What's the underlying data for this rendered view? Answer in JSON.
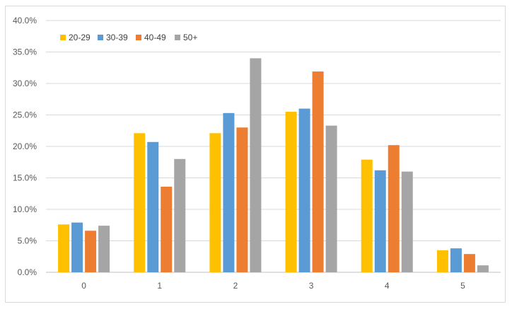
{
  "chart_data": {
    "type": "bar",
    "categories": [
      "0",
      "1",
      "2",
      "3",
      "4",
      "5"
    ],
    "series": [
      {
        "name": "20-29",
        "color": "#FFC000",
        "values": [
          7.6,
          22.1,
          22.1,
          25.5,
          17.9,
          3.5
        ]
      },
      {
        "name": "30-39",
        "color": "#5B9BD5",
        "values": [
          7.9,
          20.7,
          25.3,
          26.0,
          16.2,
          3.8
        ]
      },
      {
        "name": "40-49",
        "color": "#ED7D31",
        "values": [
          6.6,
          13.6,
          23.0,
          31.9,
          20.2,
          2.9
        ]
      },
      {
        "name": "50+",
        "color": "#A5A5A5",
        "values": [
          7.4,
          18.0,
          34.0,
          23.3,
          16.0,
          1.1
        ]
      }
    ],
    "yticks": [
      "0.0%",
      "5.0%",
      "10.0%",
      "15.0%",
      "20.0%",
      "25.0%",
      "30.0%",
      "35.0%",
      "40.0%"
    ],
    "ylim": [
      0,
      40
    ],
    "grid": true,
    "legend": "top-left"
  }
}
